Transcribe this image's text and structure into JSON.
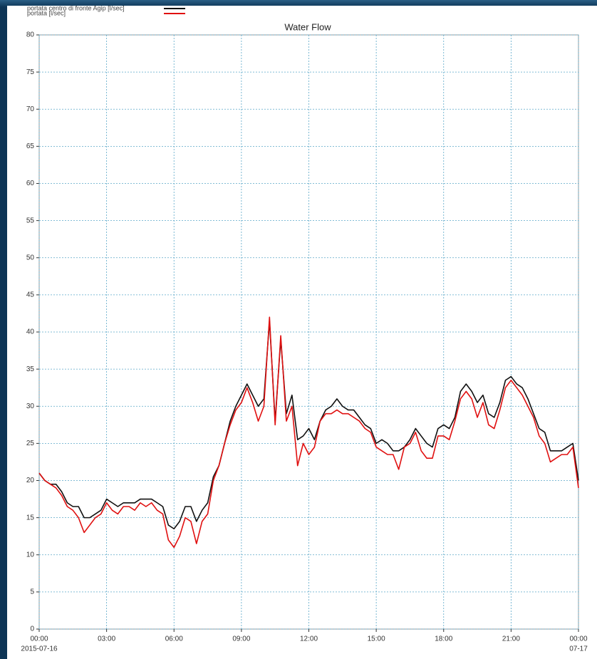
{
  "chart_data": {
    "type": "line",
    "title": "Water Flow",
    "legend": "top-left",
    "grid": true,
    "x": [
      0,
      0.25,
      0.5,
      0.75,
      1,
      1.25,
      1.5,
      1.75,
      2,
      2.25,
      2.5,
      2.75,
      3,
      3.25,
      3.5,
      3.75,
      4,
      4.25,
      4.5,
      4.75,
      5,
      5.25,
      5.5,
      5.75,
      6,
      6.25,
      6.5,
      6.75,
      7,
      7.25,
      7.5,
      7.75,
      8,
      8.25,
      8.5,
      8.75,
      9,
      9.25,
      9.5,
      9.75,
      10,
      10.25,
      10.5,
      10.75,
      11,
      11.25,
      11.5,
      11.75,
      12,
      12.25,
      12.5,
      12.75,
      13,
      13.25,
      13.5,
      13.75,
      14,
      14.25,
      14.5,
      14.75,
      15,
      15.25,
      15.5,
      15.75,
      16,
      16.25,
      16.5,
      16.75,
      17,
      17.25,
      17.5,
      17.75,
      18,
      18.25,
      18.5,
      18.75,
      19,
      19.25,
      19.5,
      19.75,
      20,
      20.25,
      20.5,
      20.75,
      21,
      21.25,
      21.5,
      21.75,
      22,
      22.25,
      22.5,
      22.75,
      23,
      23.25,
      23.5,
      23.75,
      24
    ],
    "series": [
      {
        "name": "portata centro di fronte Agip [l/sec]",
        "color": "#111111",
        "values": [
          21,
          20,
          19.5,
          19.5,
          18.5,
          17,
          16.5,
          16.5,
          15,
          15,
          15.5,
          16,
          17.5,
          17,
          16.5,
          17,
          17,
          17,
          17.5,
          17.5,
          17.5,
          17,
          16.5,
          14,
          13.5,
          14.5,
          16.5,
          16.5,
          14.5,
          16,
          17,
          20.5,
          22,
          25,
          28,
          30,
          31.5,
          33,
          31.5,
          30,
          31,
          41.5,
          28,
          39,
          29,
          31.5,
          25.5,
          26,
          27,
          25.5,
          28,
          29.5,
          30,
          31,
          30,
          29.5,
          29.5,
          28.5,
          27.5,
          27,
          25,
          25.5,
          25,
          24,
          24,
          24.5,
          25.5,
          27,
          26,
          25,
          24.5,
          27,
          27.5,
          27,
          28.5,
          32,
          33,
          32,
          30.5,
          31.5,
          29,
          28.5,
          30.5,
          33.5,
          34,
          33,
          32.5,
          31,
          29,
          27,
          26.5,
          24,
          24,
          24,
          24.5,
          25,
          20
        ]
      },
      {
        "name": "portata [l/sec]",
        "color": "#e01010",
        "values": [
          21,
          20,
          19.5,
          19,
          18,
          16.5,
          16,
          15,
          13,
          14,
          15,
          15.5,
          17,
          16,
          15.5,
          16.5,
          16.5,
          16,
          17,
          16.5,
          17,
          16,
          15.5,
          12,
          11,
          12.5,
          15,
          14.5,
          11.5,
          14.5,
          15.5,
          20,
          22,
          25,
          27.5,
          29.5,
          30.5,
          32.5,
          30.5,
          28,
          30,
          42,
          27.5,
          39.5,
          28,
          30,
          22,
          25,
          23.5,
          24.5,
          28,
          29,
          29,
          29.5,
          29,
          29,
          28.5,
          28,
          27,
          26.5,
          24.5,
          24,
          23.5,
          23.5,
          21.5,
          24.5,
          25,
          26.5,
          24,
          23,
          23,
          26,
          26,
          25.5,
          28,
          31,
          32,
          31,
          28.5,
          30.5,
          27.5,
          27,
          29.5,
          32.5,
          33.5,
          32.5,
          31.5,
          30,
          28.5,
          26,
          25,
          22.5,
          23,
          23.5,
          23.5,
          24.5,
          19
        ]
      }
    ],
    "xlim": [
      0,
      24
    ],
    "xticks": [
      {
        "value": 0,
        "label": "00:00"
      },
      {
        "value": 3,
        "label": "03:00"
      },
      {
        "value": 6,
        "label": "06:00"
      },
      {
        "value": 9,
        "label": "09:00"
      },
      {
        "value": 12,
        "label": "12:00"
      },
      {
        "value": 15,
        "label": "15:00"
      },
      {
        "value": 18,
        "label": "18:00"
      },
      {
        "value": 21,
        "label": "21:00"
      },
      {
        "value": 24,
        "label": "00:00"
      }
    ],
    "x_date_labels": [
      {
        "value": 0,
        "label": "2015-07-16"
      },
      {
        "value": 24,
        "label": "07-17"
      }
    ],
    "ylim": [
      0,
      80
    ],
    "yticks": [
      0,
      5,
      10,
      15,
      20,
      25,
      30,
      35,
      40,
      45,
      50,
      55,
      60,
      65,
      70,
      75,
      80
    ]
  }
}
